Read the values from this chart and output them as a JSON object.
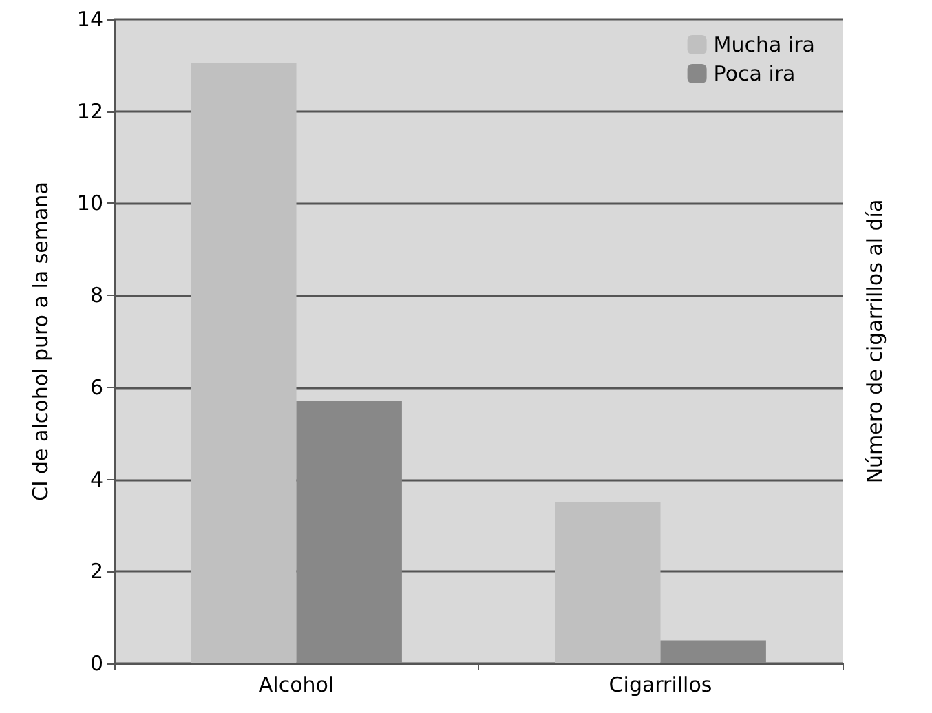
{
  "chart_data": {
    "type": "bar",
    "ylabel": "Cl de alcohol puro a la semana",
    "y2label": "Número de cigarrillos al día",
    "categories": [
      "Alcohol",
      "Cigarrillos"
    ],
    "series": [
      {
        "name": "Mucha ira",
        "color": "#c0c0c0",
        "values": [
          13.05,
          3.5
        ]
      },
      {
        "name": "Poca ira",
        "color": "#888888",
        "values": [
          5.7,
          0.5
        ]
      }
    ],
    "ylim": [
      0,
      14
    ],
    "yticks": [
      0,
      2,
      4,
      6,
      8,
      10,
      12,
      14
    ],
    "grid": "y",
    "legend": "top right"
  }
}
